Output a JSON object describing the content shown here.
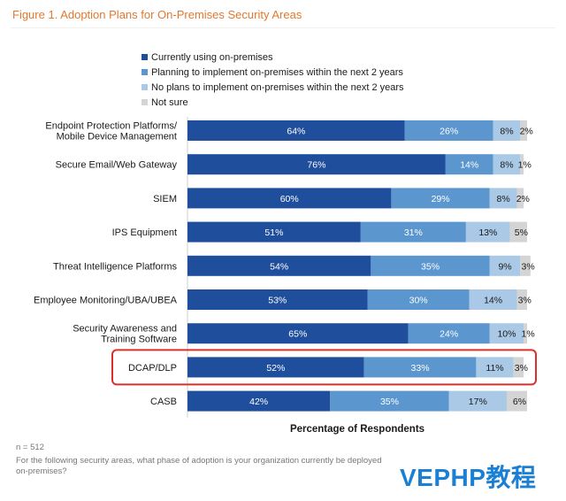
{
  "figure_title": "Figure 1. Adoption Plans for On-Premises Security Areas",
  "chart_data": {
    "type": "bar",
    "orientation": "horizontal",
    "stacked": true,
    "categories": [
      [
        "Endpoint Protection Platforms/",
        "Mobile Device Management"
      ],
      [
        "Secure Email/Web Gateway"
      ],
      [
        "SIEM"
      ],
      [
        "IPS Equipment"
      ],
      [
        "Threat Intelligence Platforms"
      ],
      [
        "Employee Monitoring/UBA/UBEA"
      ],
      [
        "Security Awareness and",
        "Training Software"
      ],
      [
        "DCAP/DLP"
      ],
      [
        "CASB"
      ]
    ],
    "series": [
      {
        "name": "Currently using on-premises",
        "color": "#1f4e9c",
        "label_color": "#ffffff",
        "values": [
          64,
          76,
          60,
          51,
          54,
          53,
          65,
          52,
          42
        ]
      },
      {
        "name": "Planning to implement on-premises within the next 2 years",
        "color": "#5b96cf",
        "label_color": "#ffffff",
        "values": [
          26,
          14,
          29,
          31,
          35,
          30,
          24,
          33,
          35
        ]
      },
      {
        "name": "No plans to implement on-premises within the next 2 years",
        "color": "#a9c9e6",
        "label_color": "#1a1a1a",
        "values": [
          8,
          8,
          8,
          13,
          9,
          14,
          10,
          11,
          17
        ]
      },
      {
        "name": "Not sure",
        "color": "#d4d4d4",
        "label_color": "#1a1a1a",
        "values": [
          2,
          1,
          2,
          5,
          3,
          3,
          1,
          3,
          6
        ]
      }
    ],
    "xlabel": "Percentage of Respondents",
    "xlim": [
      0,
      100
    ],
    "highlighted_category": "DCAP/DLP",
    "highlight_color": "#d9302c"
  },
  "footnotes": {
    "n": "n = 512",
    "question": "For the following security areas, what phase of adoption is your organization currently be deployed on-premises?"
  },
  "watermark": "VEPHP教程"
}
